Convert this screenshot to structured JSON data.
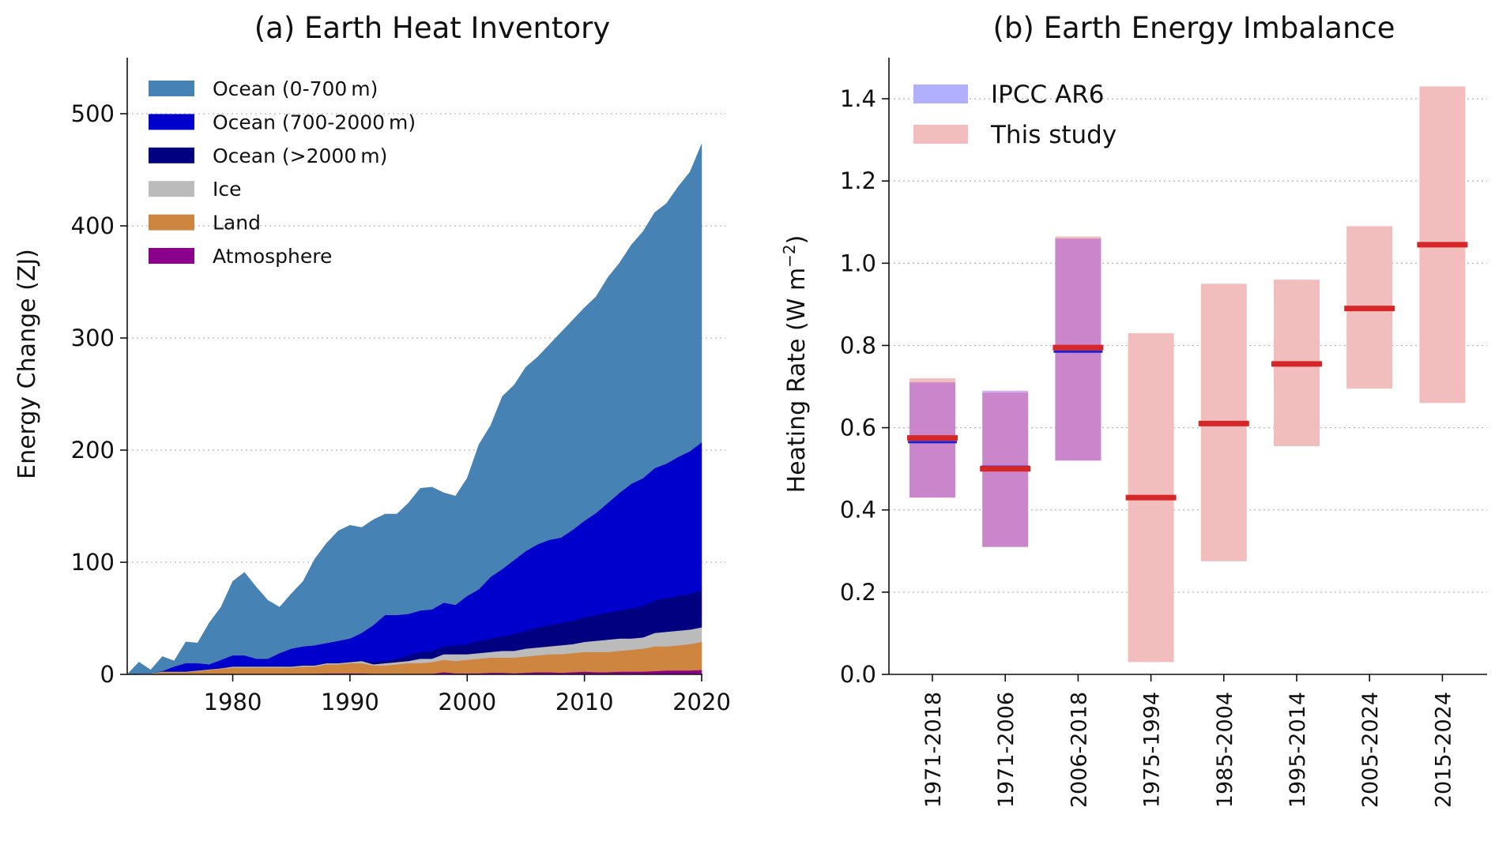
{
  "chart_data": [
    {
      "type": "area",
      "title": "(a) Earth Heat Inventory",
      "xlabel": "",
      "ylabel": "Energy Change (ZJ)",
      "xlim": [
        1971,
        2020
      ],
      "ylim": [
        0,
        550
      ],
      "xticks": [
        1980,
        1990,
        2000,
        2010,
        2020
      ],
      "yticks": [
        0,
        100,
        200,
        300,
        400,
        500
      ],
      "grid": "horizontal dotted",
      "legend": "top-left",
      "stacked": true,
      "x": [
        1971,
        1972,
        1973,
        1974,
        1975,
        1976,
        1977,
        1978,
        1979,
        1980,
        1981,
        1982,
        1983,
        1984,
        1985,
        1986,
        1987,
        1988,
        1989,
        1990,
        1991,
        1992,
        1993,
        1994,
        1995,
        1996,
        1997,
        1998,
        1999,
        2000,
        2001,
        2002,
        2003,
        2004,
        2005,
        2006,
        2007,
        2008,
        2009,
        2010,
        2011,
        2012,
        2013,
        2014,
        2015,
        2016,
        2017,
        2018,
        2019,
        2020
      ],
      "series": [
        {
          "name": "Atmosphere",
          "color": "#8b008b",
          "values": [
            0,
            0,
            0,
            0.5,
            0.5,
            0.5,
            0.5,
            0.5,
            0.5,
            0.5,
            0.5,
            0.5,
            0.5,
            0.5,
            0.5,
            0.5,
            0.5,
            1,
            1,
            1,
            1,
            0.5,
            0.5,
            0.5,
            0.5,
            0.5,
            0.5,
            2,
            1,
            1,
            1,
            1.5,
            1.5,
            1,
            1.5,
            2,
            2,
            1.5,
            2,
            2.5,
            2,
            2,
            2.5,
            2.5,
            2.5,
            3,
            3.5,
            3.5,
            3.5,
            4
          ]
        },
        {
          "name": "Land",
          "color": "#cd853f",
          "values": [
            0,
            0.5,
            0.5,
            1.5,
            1.5,
            1.5,
            2.5,
            3.5,
            4.5,
            5.5,
            5.5,
            5.5,
            5.5,
            5.5,
            5.5,
            6.5,
            6.5,
            8,
            8,
            9,
            9,
            7.5,
            7.5,
            8.5,
            9.5,
            9.5,
            10.5,
            11,
            11,
            12,
            13,
            13.5,
            13.5,
            14,
            14.5,
            15,
            16,
            16.5,
            17,
            17.5,
            18,
            18,
            18.5,
            19.5,
            20.5,
            22,
            21.5,
            22.5,
            23.5,
            25
          ]
        },
        {
          "name": "Ice",
          "color": "#bbbbbb",
          "values": [
            0,
            0.5,
            0.5,
            0.5,
            0.5,
            0.5,
            0.5,
            0.5,
            0.5,
            1,
            1,
            1,
            1,
            1,
            1,
            1,
            1,
            1,
            1,
            1,
            2,
            1,
            2,
            2,
            2,
            4,
            3,
            5,
            6,
            5,
            5,
            5,
            6,
            6,
            7,
            7,
            7,
            8,
            8,
            9,
            10,
            11,
            11,
            10,
            10,
            12,
            13,
            13,
            13,
            13
          ]
        },
        {
          "name": "Ocean (>2000 m)",
          "color": "#000080",
          "values": [
            0,
            0,
            0,
            0.5,
            0.5,
            0.5,
            0.5,
            0.5,
            0.5,
            0.5,
            0.5,
            0.5,
            0.5,
            0.5,
            0.5,
            0.5,
            0.5,
            0.5,
            0.5,
            0.5,
            0.5,
            2,
            2,
            3,
            5,
            6,
            7,
            7,
            8,
            9,
            11,
            12,
            13,
            15,
            16,
            18,
            19,
            20,
            21,
            22,
            23,
            24,
            25,
            27,
            28,
            29,
            30,
            31,
            32,
            33
          ]
        },
        {
          "name": "Ocean (700-2000 m)",
          "color": "#0000cd",
          "values": [
            0,
            0,
            0,
            0,
            4,
            7,
            6,
            4,
            7,
            9.5,
            9.5,
            6.5,
            6.5,
            11.5,
            15.5,
            16.5,
            17.5,
            17.5,
            19.5,
            20.5,
            24.5,
            33,
            41,
            39,
            37,
            37,
            37,
            39,
            36,
            43,
            46,
            55,
            60,
            66,
            71,
            74,
            76,
            76,
            81,
            86,
            91,
            98,
            105,
            111,
            114,
            118,
            120,
            124,
            127,
            132
          ]
        },
        {
          "name": "Ocean (0-700 m)",
          "color": "#4682b4",
          "values": [
            0,
            10,
            3,
            13,
            5,
            19,
            18,
            37,
            47,
            66,
            74,
            64,
            52,
            41,
            49,
            58,
            77,
            89,
            98,
            101,
            94,
            94,
            90,
            90,
            99,
            109,
            109,
            98,
            97,
            105,
            129,
            135,
            154,
            156,
            164,
            167,
            174,
            183,
            187,
            190,
            193,
            201,
            205,
            213,
            220,
            228,
            232,
            241,
            249,
            266
          ]
        }
      ],
      "legend_order": [
        "Ocean (0-700 m)",
        "Ocean (700-2000 m)",
        "Ocean (>2000 m)",
        "Ice",
        "Land",
        "Atmosphere"
      ]
    },
    {
      "type": "bar",
      "title": "(b) Earth Energy Imbalance",
      "xlabel": "",
      "ylabel": "Heating Rate (W m",
      "ylabel_sup": "−2",
      "ylabel_end": ")",
      "ylim": [
        0,
        1.5
      ],
      "yticks": [
        "0.0",
        "0.2",
        "0.4",
        "0.6",
        "0.8",
        "1.0",
        "1.2",
        "1.4"
      ],
      "grid": "horizontal dotted",
      "legend": "top-left",
      "categories": [
        "1971-2018",
        "1971-2006",
        "2006-2018",
        "1975-1994",
        "1985-2004",
        "1995-2014",
        "2005-2024",
        "2015-2024"
      ],
      "series": [
        {
          "name": "IPCC AR6",
          "color": "#b0b0ff",
          "line_color": "#2020d0",
          "low": [
            0.43,
            0.31,
            0.52,
            null,
            null,
            null,
            null,
            null
          ],
          "high": [
            0.71,
            0.69,
            1.06,
            null,
            null,
            null,
            null,
            null
          ],
          "central": [
            0.565,
            0.505,
            0.785,
            null,
            null,
            null,
            null,
            null
          ]
        },
        {
          "name": "This study",
          "color": "#f2bdbd",
          "line_color": "#d62728",
          "low": [
            0.43,
            0.31,
            0.52,
            0.03,
            0.275,
            0.555,
            0.695,
            0.66
          ],
          "high": [
            0.72,
            0.685,
            1.065,
            0.83,
            0.95,
            0.96,
            1.09,
            1.43
          ],
          "central": [
            0.575,
            0.5,
            0.795,
            0.43,
            0.61,
            0.755,
            0.89,
            1.045
          ]
        }
      ]
    }
  ]
}
